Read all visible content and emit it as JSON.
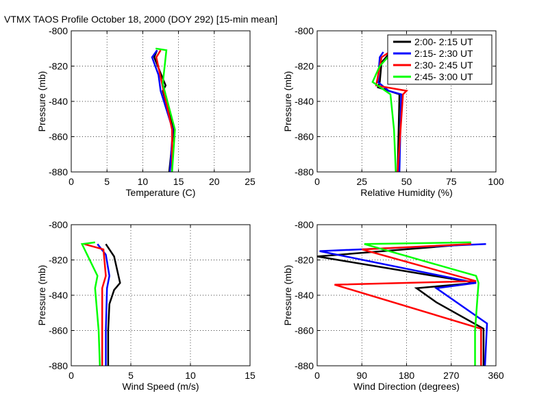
{
  "figure": {
    "title": "VTMX TAOS Profile   October 18, 2000 (DOY 292) [15-min mean]"
  },
  "series_colors": [
    "#000000",
    "#0000ff",
    "#ff0000",
    "#00ff00"
  ],
  "legend_labels": [
    "2:00- 2:15 UT",
    "2:15- 2:30 UT",
    "2:30- 2:45 UT",
    "2:45- 3:00 UT"
  ],
  "chart_data": [
    {
      "type": "line",
      "xlabel": "Temperature (C)",
      "ylabel": "Pressure (mb)",
      "xlim": [
        0,
        25
      ],
      "ylim": [
        -880,
        -800
      ],
      "xticks": [
        0,
        5,
        10,
        15,
        20,
        25
      ],
      "xtick_labels": [
        "0",
        "5",
        "10",
        "15",
        "20",
        "25"
      ],
      "yticks": [
        -800,
        -820,
        -840,
        -860,
        -880
      ],
      "ytick_labels": [
        "-800",
        "-820",
        "-840",
        "-860",
        "-880"
      ],
      "grid": true,
      "legend": false,
      "series": [
        {
          "name": "2:00- 2:15 UT",
          "points": [
            [
              12.0,
              -811
            ],
            [
              11.6,
              -815
            ],
            [
              12.6,
              -825
            ],
            [
              13.2,
              -831
            ],
            [
              12.8,
              -834
            ],
            [
              14.3,
              -856
            ],
            [
              13.7,
              -880
            ]
          ]
        },
        {
          "name": "2:15- 2:30 UT",
          "points": [
            [
              12.0,
              -811
            ],
            [
              11.3,
              -815
            ],
            [
              12.2,
              -825
            ],
            [
              12.5,
              -834
            ],
            [
              14.2,
              -856
            ],
            [
              13.8,
              -880
            ]
          ]
        },
        {
          "name": "2:30- 2:45 UT",
          "points": [
            [
              12.5,
              -811
            ],
            [
              11.9,
              -815
            ],
            [
              12.7,
              -830
            ],
            [
              14.1,
              -856
            ],
            [
              14.1,
              -880
            ]
          ]
        },
        {
          "name": "2:45- 3:00 UT",
          "points": [
            [
              11.8,
              -810
            ],
            [
              13.3,
              -811
            ],
            [
              12.8,
              -830
            ],
            [
              14.5,
              -856
            ],
            [
              14.1,
              -880
            ]
          ]
        }
      ]
    },
    {
      "type": "line",
      "xlabel": "Relative Humidity (%)",
      "ylabel": "Pressure (mb)",
      "xlim": [
        0,
        100
      ],
      "ylim": [
        -880,
        -800
      ],
      "xticks": [
        0,
        25,
        50,
        75,
        100
      ],
      "xtick_labels": [
        "0",
        "25",
        "50",
        "75",
        "100"
      ],
      "yticks": [
        -800,
        -820,
        -840,
        -860,
        -880
      ],
      "ytick_labels": [
        "-800",
        "-820",
        "-840",
        "-860",
        "-880"
      ],
      "grid": true,
      "legend": true,
      "legend_position": "top-right",
      "series": [
        {
          "name": "2:00- 2:15 UT",
          "points": [
            [
              41,
              -812
            ],
            [
              36,
              -818
            ],
            [
              35,
              -829
            ],
            [
              34,
              -832
            ],
            [
              46,
              -836
            ],
            [
              45,
              -880
            ]
          ]
        },
        {
          "name": "2:15- 2:30 UT",
          "points": [
            [
              37,
              -812
            ],
            [
              35,
              -815
            ],
            [
              34,
              -829
            ],
            [
              40,
              -834
            ],
            [
              47,
              -836
            ],
            [
              46,
              -880
            ]
          ]
        },
        {
          "name": "2:30- 2:45 UT",
          "points": [
            [
              42,
              -811
            ],
            [
              36,
              -815
            ],
            [
              33,
              -831
            ],
            [
              50,
              -834
            ],
            [
              48,
              -836
            ],
            [
              45,
              -880
            ]
          ]
        },
        {
          "name": "2:45- 3:00 UT",
          "points": [
            [
              43,
              -811
            ],
            [
              35,
              -820
            ],
            [
              31,
              -829
            ],
            [
              41,
              -836
            ],
            [
              43,
              -856
            ],
            [
              44,
              -880
            ]
          ]
        }
      ]
    },
    {
      "type": "line",
      "xlabel": "Wind Speed (m/s)",
      "ylabel": "Pressure (mb)",
      "xlim": [
        0,
        15
      ],
      "ylim": [
        -880,
        -800
      ],
      "xticks": [
        0,
        5,
        10,
        15
      ],
      "xtick_labels": [
        "0",
        "5",
        "10",
        "15"
      ],
      "yticks": [
        -800,
        -820,
        -840,
        -860,
        -880
      ],
      "ytick_labels": [
        "-800",
        "-820",
        "-840",
        "-860",
        "-880"
      ],
      "grid": true,
      "legend": false,
      "series": [
        {
          "name": "2:00- 2:15 UT",
          "points": [
            [
              2.9,
              -811
            ],
            [
              3.6,
              -818
            ],
            [
              4.1,
              -833
            ],
            [
              3.6,
              -837
            ],
            [
              3.2,
              -845
            ],
            [
              3.1,
              -860
            ],
            [
              3.1,
              -880
            ]
          ]
        },
        {
          "name": "2:15- 2:30 UT",
          "points": [
            [
              2.2,
              -811
            ],
            [
              2.9,
              -817
            ],
            [
              3.2,
              -829
            ],
            [
              3.0,
              -836
            ],
            [
              2.9,
              -860
            ],
            [
              2.9,
              -880
            ]
          ]
        },
        {
          "name": "2:30- 2:45 UT",
          "points": [
            [
              1.1,
              -811
            ],
            [
              2.7,
              -814
            ],
            [
              2.9,
              -829
            ],
            [
              2.6,
              -836
            ],
            [
              2.6,
              -860
            ],
            [
              2.6,
              -880
            ]
          ]
        },
        {
          "name": "2:45- 3:00 UT",
          "points": [
            [
              2.0,
              -810
            ],
            [
              0.9,
              -811
            ],
            [
              2.2,
              -829
            ],
            [
              2.0,
              -836
            ],
            [
              2.3,
              -860
            ],
            [
              2.4,
              -880
            ]
          ]
        }
      ]
    },
    {
      "type": "line",
      "xlabel": "Wind Direction (degrees)",
      "ylabel": "Pressure (mb)",
      "xlim": [
        0,
        360
      ],
      "ylim": [
        -880,
        -800
      ],
      "xticks": [
        0,
        90,
        180,
        270,
        360
      ],
      "xtick_labels": [
        "0",
        "90",
        "180",
        "270",
        "360"
      ],
      "yticks": [
        -800,
        -820,
        -840,
        -860,
        -880
      ],
      "ytick_labels": [
        "-800",
        "-820",
        "-840",
        "-860",
        "-880"
      ],
      "grid": true,
      "legend": false,
      "series": [
        {
          "name": "2:00- 2:15 UT",
          "points": [
            [
              310,
              -811
            ],
            [
              0,
              -818
            ],
            [
              320,
              -833
            ],
            [
              200,
              -836
            ],
            [
              240,
              -844
            ],
            [
              335,
              -859
            ],
            [
              335,
              -880
            ]
          ]
        },
        {
          "name": "2:15- 2:30 UT",
          "points": [
            [
              340,
              -811
            ],
            [
              5,
              -815
            ],
            [
              320,
              -833
            ],
            [
              240,
              -836
            ],
            [
              342,
              -856
            ],
            [
              338,
              -880
            ]
          ]
        },
        {
          "name": "2:30- 2:45 UT",
          "points": [
            [
              310,
              -811
            ],
            [
              90,
              -814
            ],
            [
              320,
              -832
            ],
            [
              35,
              -834
            ],
            [
              330,
              -859
            ],
            [
              330,
              -880
            ]
          ]
        },
        {
          "name": "2:45- 3:00 UT",
          "points": [
            [
              310,
              -810
            ],
            [
              95,
              -811
            ],
            [
              320,
              -829
            ],
            [
              325,
              -833
            ],
            [
              318,
              -860
            ],
            [
              318,
              -880
            ]
          ]
        }
      ]
    }
  ]
}
